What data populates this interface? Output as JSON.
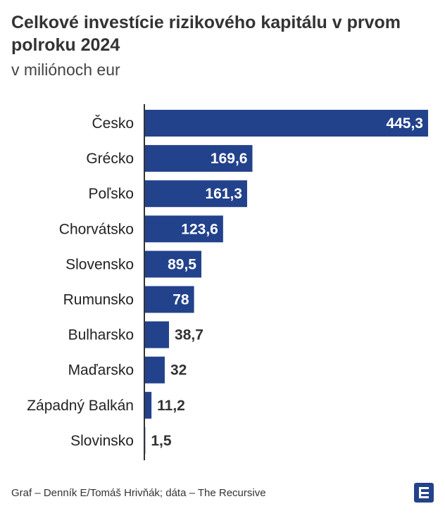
{
  "title": "Celkové investície rizikového kapitálu v prvom polroku 2024",
  "subtitle": "v miliónoch eur",
  "source": "Graf – Denník E/Tomáš Hrivňák; dáta – The Recursive",
  "logo": {
    "name": "denník-e-logo",
    "color": "#23428c"
  },
  "chart_data": {
    "type": "bar",
    "orientation": "horizontal",
    "categories": [
      "Česko",
      "Grécko",
      "Poľsko",
      "Chorvátsko",
      "Slovensko",
      "Rumunsko",
      "Bulharsko",
      "Maďarsko",
      "Západný Balkán",
      "Slovinsko"
    ],
    "values": [
      445.3,
      169.6,
      161.3,
      123.6,
      89.5,
      78,
      38.7,
      32,
      11.2,
      1.5
    ],
    "value_labels": [
      "445,3",
      "169,6",
      "161,3",
      "123,6",
      "89,5",
      "78",
      "38,7",
      "32",
      "11,2",
      "1,5"
    ],
    "bar_color": "#23428c",
    "label_inside_color": "#ffffff",
    "label_outside_color": "#333333",
    "xlim": [
      0,
      445.3
    ],
    "grid": false,
    "legend": "none"
  }
}
